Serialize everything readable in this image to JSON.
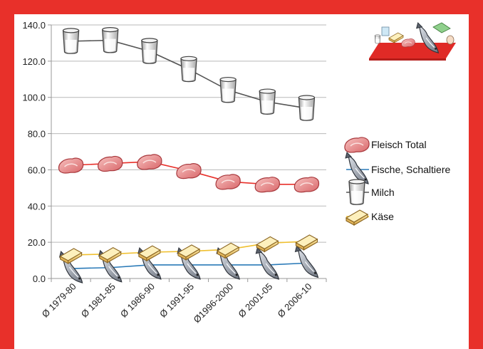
{
  "chart_data": {
    "type": "line",
    "title": "",
    "xlabel": "",
    "ylabel": "",
    "categories": [
      "Ø 1979-80",
      "Ø 1981-85",
      "Ø 1986-90",
      "Ø 1991-95",
      "Ø1996-2000",
      "Ø 2001-05",
      "Ø 2006-10"
    ],
    "ylim": [
      0,
      140
    ],
    "yticks": [
      "0.0",
      "20.0",
      "40.0",
      "60.0",
      "80.0",
      "100.0",
      "120.0",
      "140.0"
    ],
    "grid": "horizontal",
    "legend_position": "right",
    "series": [
      {
        "name": "Fleisch Total",
        "color": "#e8302a",
        "marker": "meat-icon",
        "values": [
          62.5,
          63.5,
          64.5,
          59.5,
          53.5,
          52,
          52
        ]
      },
      {
        "name": "Fische, Schaltiere",
        "color": "#2a7ab8",
        "marker": "fish-icon",
        "values": [
          5.5,
          6,
          7.5,
          7.5,
          7.5,
          7.5,
          8.5
        ]
      },
      {
        "name": "Milch",
        "color": "#555555",
        "marker": "milk-glass-icon",
        "values": [
          131,
          131.5,
          125.5,
          115.5,
          104,
          97.5,
          94
        ]
      },
      {
        "name": "Käse",
        "color": "#f0c030",
        "marker": "cheese-icon",
        "values": [
          13,
          13.5,
          14.5,
          15,
          16,
          19.5,
          20.5
        ]
      }
    ]
  }
}
